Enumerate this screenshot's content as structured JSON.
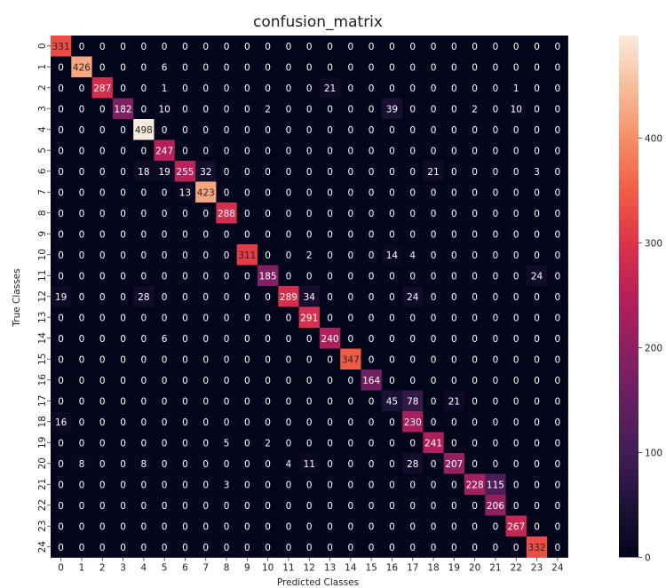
{
  "chart_data": {
    "type": "heatmap",
    "title": "confusion_matrix",
    "xlabel": "Predicted Classes",
    "ylabel": "True Classes",
    "x_ticks": [
      "0",
      "1",
      "2",
      "3",
      "4",
      "5",
      "6",
      "7",
      "8",
      "9",
      "10",
      "11",
      "12",
      "13",
      "14",
      "15",
      "16",
      "17",
      "18",
      "19",
      "20",
      "21",
      "22",
      "23",
      "24"
    ],
    "y_ticks": [
      "0",
      "1",
      "2",
      "3",
      "4",
      "5",
      "6",
      "7",
      "8",
      "9",
      "10",
      "11",
      "12",
      "13",
      "14",
      "15",
      "16",
      "17",
      "18",
      "19",
      "20",
      "21",
      "22",
      "23",
      "24"
    ],
    "matrix": [
      [
        331,
        0,
        0,
        0,
        0,
        0,
        0,
        0,
        0,
        0,
        0,
        0,
        0,
        0,
        0,
        0,
        0,
        0,
        0,
        0,
        0,
        0,
        0,
        0,
        0
      ],
      [
        0,
        426,
        0,
        0,
        0,
        6,
        0,
        0,
        0,
        0,
        0,
        0,
        0,
        0,
        0,
        0,
        0,
        0,
        0,
        0,
        0,
        0,
        0,
        0,
        0
      ],
      [
        0,
        0,
        287,
        0,
        0,
        1,
        0,
        0,
        0,
        0,
        0,
        0,
        0,
        21,
        0,
        0,
        0,
        0,
        0,
        0,
        0,
        0,
        1,
        0,
        0
      ],
      [
        0,
        0,
        0,
        182,
        0,
        10,
        0,
        0,
        0,
        0,
        2,
        0,
        0,
        0,
        0,
        0,
        39,
        0,
        0,
        0,
        2,
        0,
        10,
        0,
        0
      ],
      [
        0,
        0,
        0,
        0,
        498,
        0,
        0,
        0,
        0,
        0,
        0,
        0,
        0,
        0,
        0,
        0,
        0,
        0,
        0,
        0,
        0,
        0,
        0,
        0,
        0
      ],
      [
        0,
        0,
        0,
        0,
        0,
        247,
        0,
        0,
        0,
        0,
        0,
        0,
        0,
        0,
        0,
        0,
        0,
        0,
        0,
        0,
        0,
        0,
        0,
        0,
        0
      ],
      [
        0,
        0,
        0,
        0,
        18,
        19,
        255,
        32,
        0,
        0,
        0,
        0,
        0,
        0,
        0,
        0,
        0,
        0,
        21,
        0,
        0,
        0,
        0,
        3,
        0
      ],
      [
        0,
        0,
        0,
        0,
        0,
        0,
        13,
        423,
        0,
        0,
        0,
        0,
        0,
        0,
        0,
        0,
        0,
        0,
        0,
        0,
        0,
        0,
        0,
        0,
        0
      ],
      [
        0,
        0,
        0,
        0,
        0,
        0,
        0,
        0,
        288,
        0,
        0,
        0,
        0,
        0,
        0,
        0,
        0,
        0,
        0,
        0,
        0,
        0,
        0,
        0,
        0
      ],
      [
        0,
        0,
        0,
        0,
        0,
        0,
        0,
        0,
        0,
        0,
        0,
        0,
        0,
        0,
        0,
        0,
        0,
        0,
        0,
        0,
        0,
        0,
        0,
        0,
        0
      ],
      [
        0,
        0,
        0,
        0,
        0,
        0,
        0,
        0,
        0,
        311,
        0,
        0,
        2,
        0,
        0,
        0,
        14,
        4,
        0,
        0,
        0,
        0,
        0,
        0,
        0
      ],
      [
        0,
        0,
        0,
        0,
        0,
        0,
        0,
        0,
        0,
        0,
        185,
        0,
        0,
        0,
        0,
        0,
        0,
        0,
        0,
        0,
        0,
        0,
        0,
        24,
        0
      ],
      [
        19,
        0,
        0,
        0,
        28,
        0,
        0,
        0,
        0,
        0,
        0,
        289,
        34,
        0,
        0,
        0,
        0,
        24,
        0,
        0,
        0,
        0,
        0,
        0,
        0
      ],
      [
        0,
        0,
        0,
        0,
        0,
        0,
        0,
        0,
        0,
        0,
        0,
        0,
        291,
        0,
        0,
        0,
        0,
        0,
        0,
        0,
        0,
        0,
        0,
        0,
        0
      ],
      [
        0,
        0,
        0,
        0,
        0,
        6,
        0,
        0,
        0,
        0,
        0,
        0,
        0,
        240,
        0,
        0,
        0,
        0,
        0,
        0,
        0,
        0,
        0,
        0,
        0
      ],
      [
        0,
        0,
        0,
        0,
        0,
        0,
        0,
        0,
        0,
        0,
        0,
        0,
        0,
        0,
        347,
        0,
        0,
        0,
        0,
        0,
        0,
        0,
        0,
        0,
        0
      ],
      [
        0,
        0,
        0,
        0,
        0,
        0,
        0,
        0,
        0,
        0,
        0,
        0,
        0,
        0,
        0,
        164,
        0,
        0,
        0,
        0,
        0,
        0,
        0,
        0,
        0
      ],
      [
        0,
        0,
        0,
        0,
        0,
        0,
        0,
        0,
        0,
        0,
        0,
        0,
        0,
        0,
        0,
        0,
        45,
        78,
        0,
        21,
        0,
        0,
        0,
        0,
        0
      ],
      [
        16,
        0,
        0,
        0,
        0,
        0,
        0,
        0,
        0,
        0,
        0,
        0,
        0,
        0,
        0,
        0,
        0,
        230,
        0,
        0,
        0,
        0,
        0,
        0,
        0
      ],
      [
        0,
        0,
        0,
        0,
        0,
        0,
        0,
        0,
        5,
        0,
        2,
        0,
        0,
        0,
        0,
        0,
        0,
        0,
        241,
        0,
        0,
        0,
        0,
        0,
        0
      ],
      [
        0,
        8,
        0,
        0,
        8,
        0,
        0,
        0,
        0,
        0,
        0,
        4,
        11,
        0,
        0,
        0,
        0,
        28,
        0,
        207,
        0,
        0,
        0,
        0,
        0
      ],
      [
        0,
        0,
        0,
        0,
        0,
        0,
        0,
        0,
        3,
        0,
        0,
        0,
        0,
        0,
        0,
        0,
        0,
        0,
        0,
        0,
        228,
        115,
        0,
        0,
        0
      ],
      [
        0,
        0,
        0,
        0,
        0,
        0,
        0,
        0,
        0,
        0,
        0,
        0,
        0,
        0,
        0,
        0,
        0,
        0,
        0,
        0,
        0,
        206,
        0,
        0,
        0
      ],
      [
        0,
        0,
        0,
        0,
        0,
        0,
        0,
        0,
        0,
        0,
        0,
        0,
        0,
        0,
        0,
        0,
        0,
        0,
        0,
        0,
        0,
        0,
        267,
        0,
        0
      ],
      [
        0,
        0,
        0,
        0,
        0,
        0,
        0,
        0,
        0,
        0,
        0,
        0,
        0,
        0,
        0,
        0,
        0,
        0,
        0,
        0,
        0,
        0,
        0,
        332,
        0
      ]
    ],
    "color_range": [
      0,
      498
    ],
    "colormap": "rocket",
    "colorbar_ticks": [
      "0",
      "100",
      "200",
      "300",
      "400"
    ],
    "grid": false,
    "legend": "none"
  }
}
